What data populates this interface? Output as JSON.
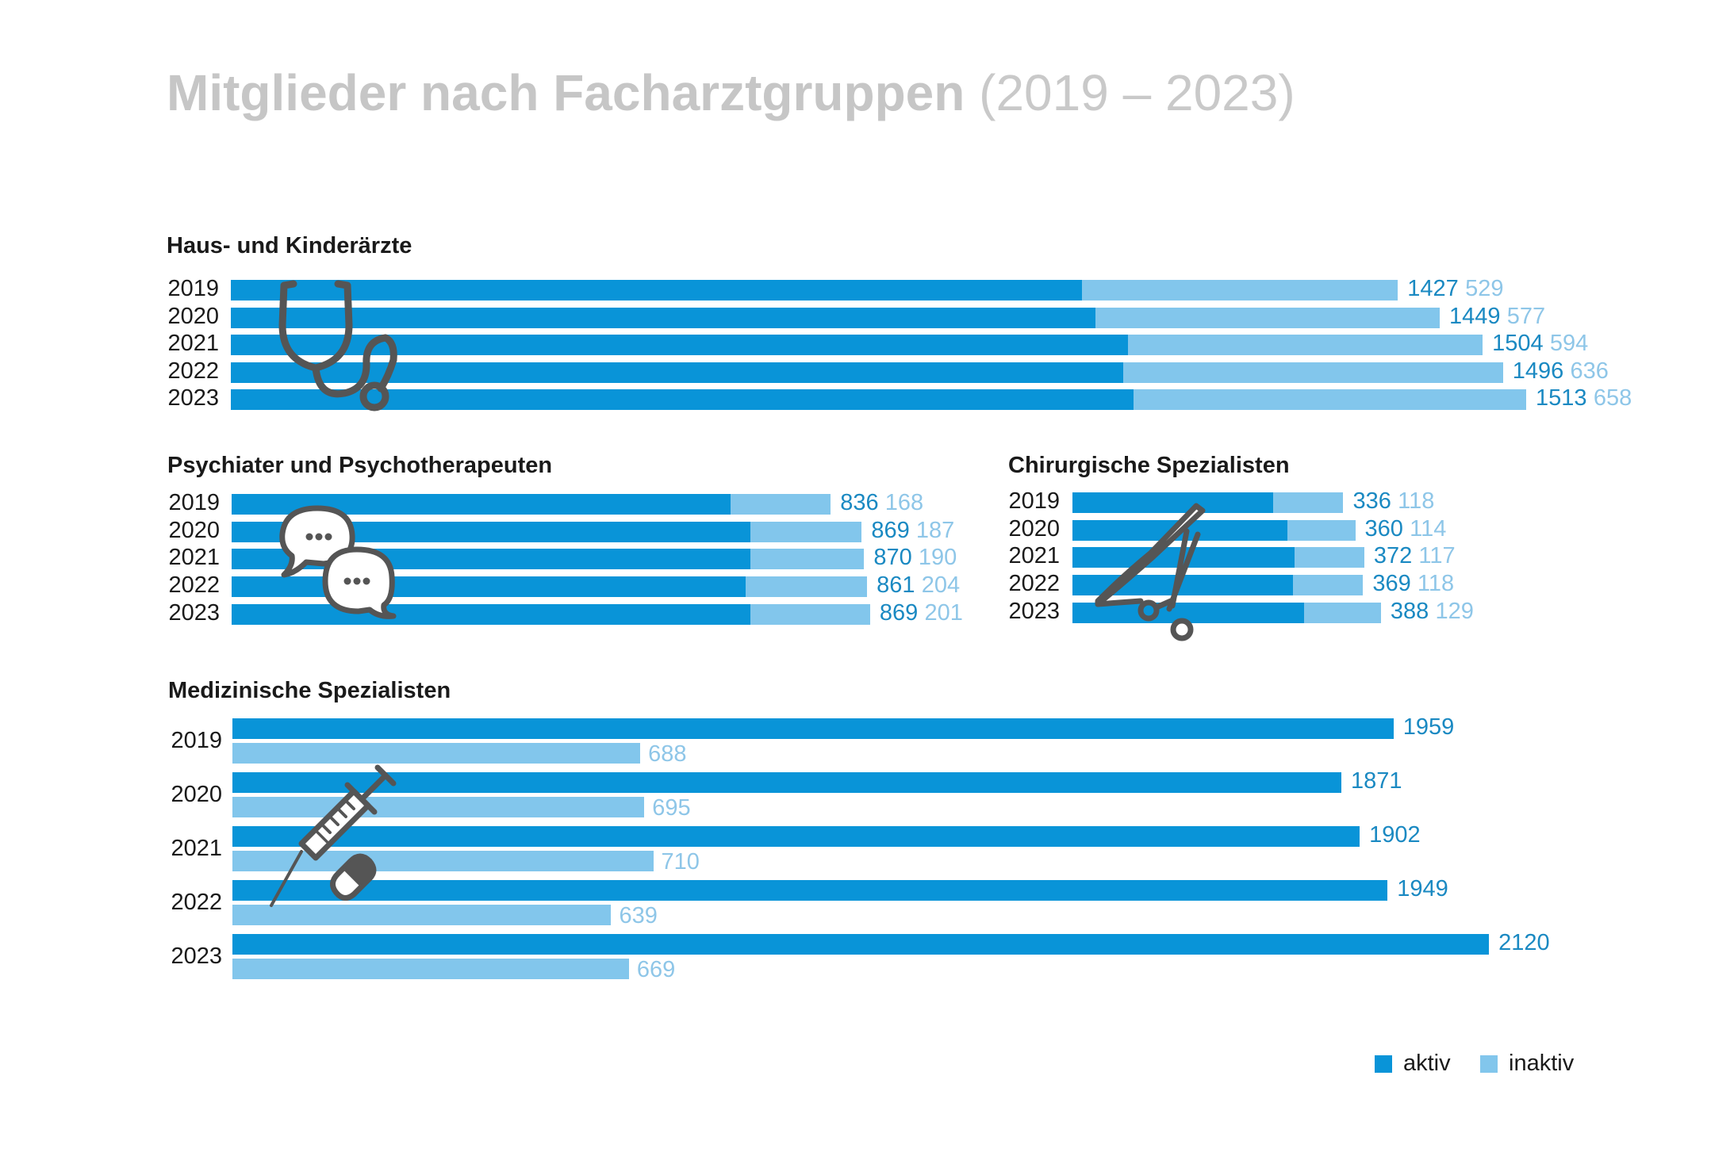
{
  "title": {
    "main": "Mitglieder nach Facharztgruppen",
    "range": "(2019 – 2023)"
  },
  "colors": {
    "aktiv": "#0994d8",
    "inaktiv": "#82c6ec",
    "icon": "#555555"
  },
  "legend": {
    "aktiv": "aktiv",
    "inaktiv": "inaktiv"
  },
  "chart_data": [
    {
      "type": "bar",
      "stacked": true,
      "title": "Haus- und Kinderärzte",
      "icon": "stethoscope-icon",
      "categories": [
        "2019",
        "2020",
        "2021",
        "2022",
        "2023"
      ],
      "series": [
        {
          "name": "aktiv",
          "values": [
            1427,
            1449,
            1504,
            1496,
            1513
          ]
        },
        {
          "name": "inaktiv",
          "values": [
            529,
            577,
            594,
            636,
            658
          ]
        }
      ]
    },
    {
      "type": "bar",
      "stacked": true,
      "title": "Psychiater und Psychotherapeuten",
      "icon": "speech-bubbles-icon",
      "categories": [
        "2019",
        "2020",
        "2021",
        "2022",
        "2023"
      ],
      "series": [
        {
          "name": "aktiv",
          "values": [
            836,
            869,
            870,
            861,
            869
          ]
        },
        {
          "name": "inaktiv",
          "values": [
            168,
            187,
            190,
            204,
            201
          ]
        }
      ]
    },
    {
      "type": "bar",
      "stacked": true,
      "title": "Chirurgische Spezialisten",
      "icon": "scalpel-scissors-icon",
      "categories": [
        "2019",
        "2020",
        "2021",
        "2022",
        "2023"
      ],
      "series": [
        {
          "name": "aktiv",
          "values": [
            336,
            360,
            372,
            369,
            388
          ]
        },
        {
          "name": "inaktiv",
          "values": [
            118,
            114,
            117,
            118,
            129
          ]
        }
      ]
    },
    {
      "type": "bar",
      "stacked": false,
      "title": "Medizinische Spezialisten",
      "icon": "syringe-pill-icon",
      "categories": [
        "2019",
        "2020",
        "2021",
        "2022",
        "2023"
      ],
      "series": [
        {
          "name": "aktiv",
          "values": [
            1959,
            1871,
            1902,
            1949,
            2120
          ]
        },
        {
          "name": "inaktiv",
          "values": [
            688,
            695,
            710,
            639,
            669
          ]
        }
      ]
    }
  ]
}
